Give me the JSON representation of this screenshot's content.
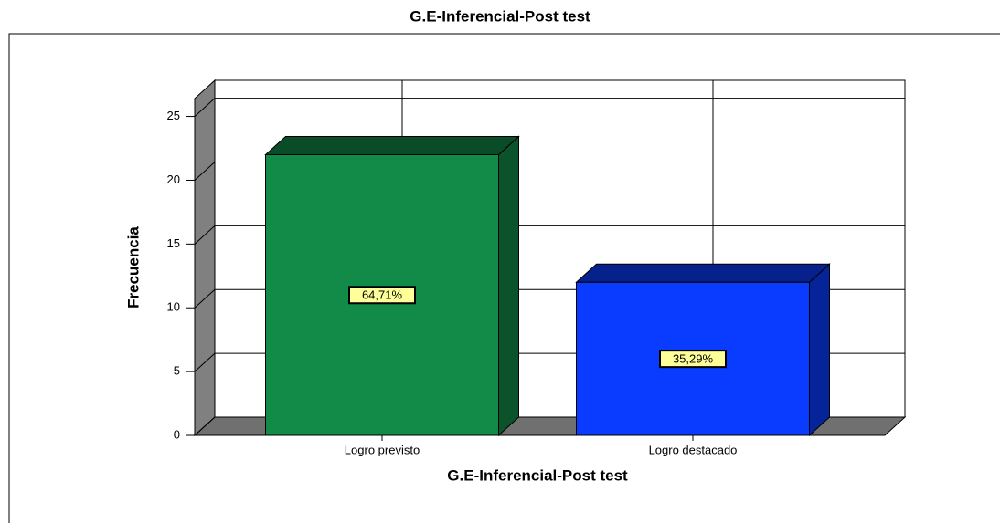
{
  "chart_data": {
    "type": "bar3d",
    "title": "G.E-Inferencial-Post test",
    "x_label": "G.E-Inferencial-Post test",
    "y_label": "Frecuencia",
    "categories": [
      "Logro previsto",
      "Logro destacado"
    ],
    "values": [
      22,
      12
    ],
    "percentages": [
      64.71,
      35.29
    ],
    "percentage_labels": [
      "64,71%",
      "35,29%"
    ],
    "colors": [
      "#128a48",
      "#0a3cff"
    ],
    "ylim": [
      0,
      26.4
    ],
    "yticks": [
      0,
      5,
      10,
      15,
      20,
      25
    ],
    "grid": true
  }
}
